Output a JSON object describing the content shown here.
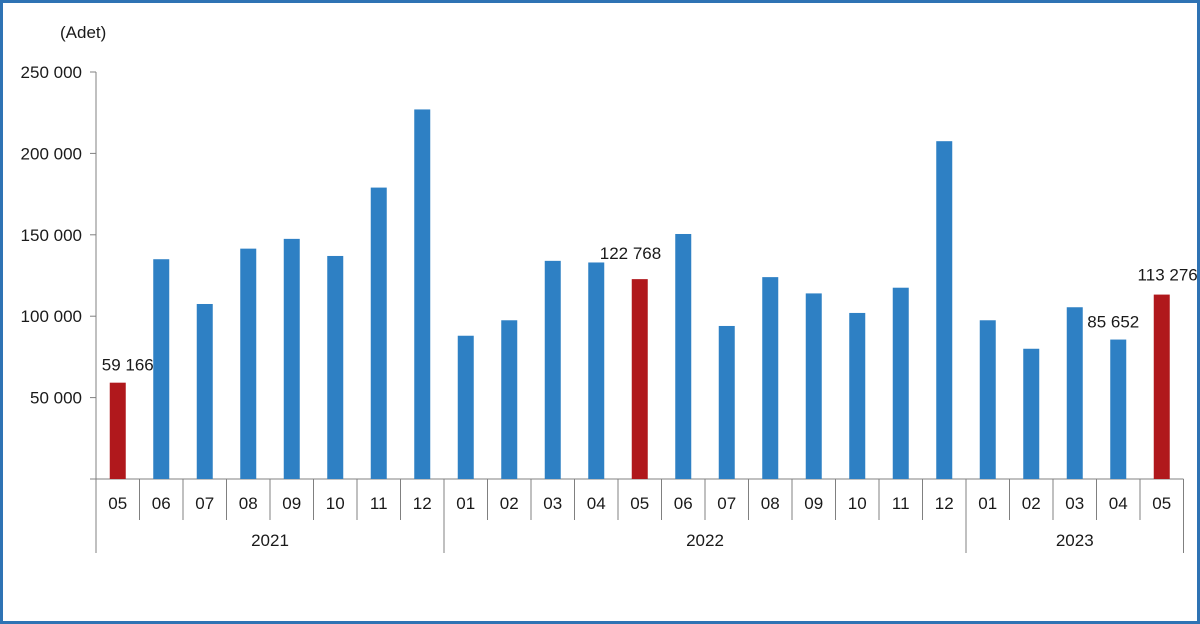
{
  "chart_data": {
    "type": "bar",
    "unit_label": "(Adet)",
    "title": "",
    "xlabel": "",
    "ylabel": "",
    "ylim": [
      0,
      250000
    ],
    "yticks": [
      "",
      "50 000",
      "100 000",
      "150 000",
      "200 000",
      "250 000"
    ],
    "ytick_values": [
      0,
      50000,
      100000,
      150000,
      200000,
      250000
    ],
    "grid": false,
    "categories": [
      "05",
      "06",
      "07",
      "08",
      "09",
      "10",
      "11",
      "12",
      "01",
      "02",
      "03",
      "04",
      "05",
      "06",
      "07",
      "08",
      "09",
      "10",
      "11",
      "12",
      "01",
      "02",
      "03",
      "04",
      "05"
    ],
    "years": [
      {
        "label": "2021",
        "start": 0,
        "count": 8
      },
      {
        "label": "2022",
        "start": 8,
        "count": 12
      },
      {
        "label": "2023",
        "start": 20,
        "count": 5
      }
    ],
    "values": [
      59166,
      135000,
      107500,
      141500,
      147500,
      137000,
      179000,
      227000,
      88000,
      97500,
      134000,
      133000,
      122768,
      150500,
      94000,
      124000,
      114000,
      102000,
      117500,
      207500,
      97500,
      80000,
      105500,
      85652,
      113276
    ],
    "highlight": [
      0,
      12,
      24
    ],
    "colors": {
      "normal": "#2e80c4",
      "highlight": "#b0181c",
      "axis": "#808080"
    },
    "data_labels": [
      {
        "index": 0,
        "text": "59 166"
      },
      {
        "index": 12,
        "text": "122 768"
      },
      {
        "index": 23,
        "text": "85 652"
      },
      {
        "index": 24,
        "text": "113 276"
      }
    ]
  }
}
